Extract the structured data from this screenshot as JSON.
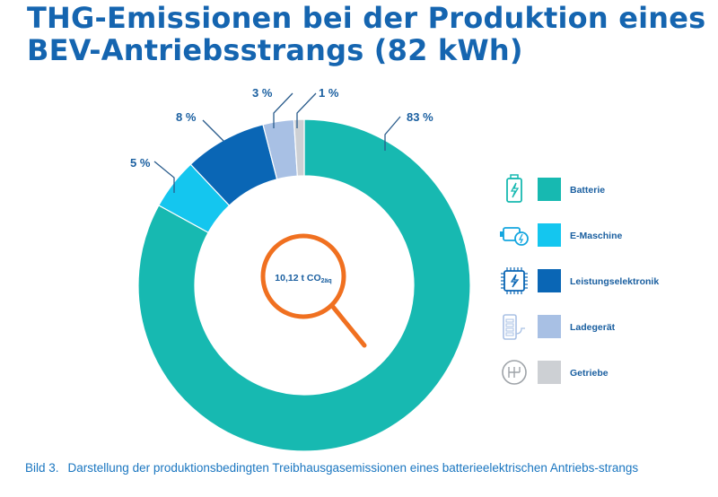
{
  "title_line1": "THG-Emissionen bei der Produktion eines",
  "title_line2": "BEV-Antriebsstrangs (82 kWh)",
  "center_label": {
    "value": "10,12 t CO",
    "subscript": "2äq"
  },
  "caption": {
    "number": "Bild 3.",
    "text": "Darstellung der produktionsbedingten Treibhausgasemissionen eines batterieelektrischen Antriebs-strangs"
  },
  "colors": {
    "title": "#1565b0",
    "magnifier": "#f07020",
    "label": "#1a5fa0"
  },
  "chart_data": {
    "type": "pie",
    "variant": "donut",
    "unit": "%",
    "start": "top",
    "direction": "clockwise",
    "legend_placement": "right",
    "series": [
      {
        "name": "Batterie",
        "value": 83,
        "label": "83 %",
        "color": "#17b9b1",
        "icon": "battery-icon"
      },
      {
        "name": "E-Maschine",
        "value": 5,
        "label": "5 %",
        "color": "#14c6ef",
        "icon": "electric-motor-icon"
      },
      {
        "name": "Leistungselektronik",
        "value": 8,
        "label": "8 %",
        "color": "#0a66b5",
        "icon": "chip-icon"
      },
      {
        "name": "Ladegerät",
        "value": 3,
        "label": "3 %",
        "color": "#a8c0e4",
        "icon": "charger-icon"
      },
      {
        "name": "Getriebe",
        "value": 1,
        "label": "1 %",
        "color": "#cdd0d4",
        "icon": "gearbox-icon"
      }
    ]
  }
}
